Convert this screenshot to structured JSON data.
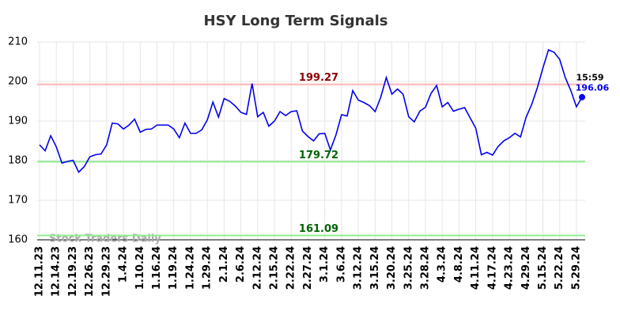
{
  "chart_data": {
    "type": "line",
    "title": "HSY Long Term Signals",
    "watermark": "Stock Traders Daily",
    "last_time": "15:59",
    "color": "#0000ee",
    "ylim": [
      160,
      210
    ],
    "yticks": [
      160,
      170,
      180,
      190,
      200,
      210
    ],
    "grid": true,
    "hlines": [
      {
        "value": 199.27,
        "color": "#ffb3b3",
        "label_color": "#8b0000"
      },
      {
        "value": 179.72,
        "color": "#90ee90",
        "label_color": "#006400"
      },
      {
        "value": 161.09,
        "color": "#90ee90",
        "label_color": "#006400"
      }
    ],
    "categories": [
      "12.11.23",
      null,
      null,
      "12.14.23",
      null,
      null,
      "12.19.23",
      null,
      null,
      "12.26.23",
      null,
      null,
      "12.29.23",
      null,
      null,
      "1.4.24",
      null,
      null,
      "1.10.24",
      null,
      null,
      "1.16.24",
      null,
      null,
      "1.19.24",
      null,
      null,
      "1.24.24",
      null,
      null,
      "1.29.24",
      null,
      null,
      "2.1.24",
      null,
      null,
      "2.6.24",
      null,
      null,
      "2.12.24",
      null,
      null,
      "2.15.24",
      null,
      null,
      "2.22.24",
      null,
      null,
      "2.27.24",
      null,
      null,
      "3.1.24",
      null,
      null,
      "3.6.24",
      null,
      null,
      "3.12.24",
      null,
      null,
      "3.15.24",
      null,
      null,
      "3.20.24",
      null,
      null,
      "3.25.24",
      null,
      null,
      "3.28.24",
      null,
      null,
      "4.3.24",
      null,
      null,
      "4.8.24",
      null,
      null,
      "4.11.24",
      null,
      null,
      "4.17.24",
      null,
      null,
      "4.23.24",
      null,
      null,
      "4.29.24",
      null,
      null,
      "5.15.24",
      null,
      null,
      "5.22.24",
      null,
      null,
      "5.29.24",
      null
    ],
    "values": [
      184,
      182.5,
      186.3,
      183.5,
      179.4,
      179.8,
      180.1,
      177.1,
      178.5,
      181,
      181.5,
      181.7,
      184,
      189.5,
      189.3,
      188,
      189,
      190.5,
      187.2,
      187.9,
      188,
      189,
      189,
      189,
      188,
      185.8,
      189.5,
      186.9,
      186.9,
      187.8,
      190.3,
      194.8,
      191,
      195.7,
      195,
      193.8,
      192.2,
      191.7,
      199.5,
      191.1,
      192.2,
      188.7,
      190,
      192.4,
      191.4,
      192.4,
      192.6,
      187.5,
      186.1,
      185,
      186.8,
      186.9,
      182.7,
      186.5,
      191.6,
      191.3,
      197.7,
      195.3,
      194.7,
      193.9,
      192.4,
      196,
      201,
      196.8,
      198.1,
      196.8,
      191.1,
      189.8,
      192.5,
      193.5,
      197,
      199,
      193.6,
      194.7,
      192.5,
      193,
      193.4,
      190.8,
      188.2,
      181.5,
      182.1,
      181.4,
      183.6,
      185,
      185.8,
      186.9,
      186,
      191,
      194.2,
      198.4,
      203.4,
      208,
      207.4,
      205.6,
      201,
      197.7,
      193.6,
      196.06
    ]
  }
}
